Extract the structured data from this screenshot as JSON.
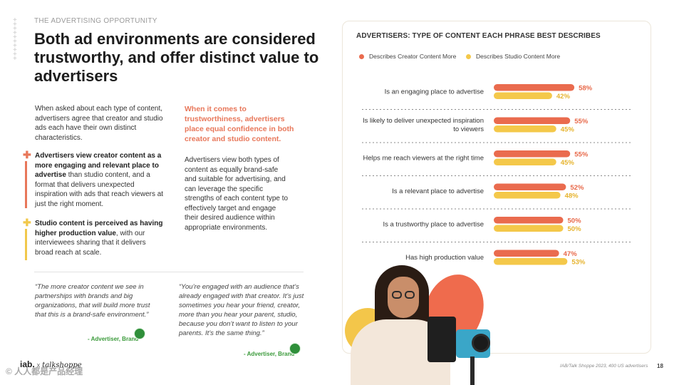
{
  "eyebrow": "THE ADVERTISING OPPORTUNITY",
  "headline": "Both ad environments are considered trustworthy, and offer distinct value to advertisers",
  "intro": "When asked about each type of content, advertisers agree that creator and studio ads each have their own distinct characteristics.",
  "points": [
    {
      "icon": "plus-icon",
      "bold": "Advertisers view creator content as a more engaging and relevant place to advertise",
      "rest": " than studio content, and a format that delivers unexpected inspiration with ads that reach viewers at just the right moment."
    },
    {
      "icon": "plus-icon",
      "bold_a": "Studio content is perceived as having ",
      "bold_b": "higher production value",
      "rest": ", with our interviewees sharing that it delivers broad reach at scale."
    }
  ],
  "callout": "When it comes to trustworthiness, advertisers place equal confidence in both creator and studio content.",
  "col2_text": "Advertisers view both types of content as equally brand-safe and suitable for advertising, and can leverage the specific strengths of each content type to effectively target and engage their desired audience within appropriate environments.",
  "quotes": [
    {
      "text": "“The more creator content we see in partnerships with brands and big organizations, that will build more trust that this is a brand-safe environment.”",
      "attribution": "- Advertiser, Brand"
    },
    {
      "text": "“You’re engaged with an audience that’s already engaged with that creator. It’s just sometimes you hear your friend, creator, more than you hear your parent, studio, because you don’t want to listen to your parents. It’s the same thing.”",
      "attribution": "- Advertiser, Brand"
    }
  ],
  "logo": {
    "left": "iab.",
    "x": "x",
    "right": "talkshoppe"
  },
  "source": "IAB/Talk Shoppe 2023, 400 US advertisers",
  "page_number": "18",
  "watermark": "© 人人都是产品经理",
  "colors": {
    "creator": "#ea6b4e",
    "studio": "#f4c84a",
    "accent": "#e8775a"
  },
  "chart_data": {
    "type": "bar",
    "orientation": "horizontal",
    "title": "ADVERTISERS: TYPE OF CONTENT EACH PHRASE BEST DESCRIBES",
    "legend_position": "top-left",
    "categories": [
      [
        "Is an engaging place to advertise"
      ],
      [
        "Is likely to deliver unexpected inspiration",
        "to viewers"
      ],
      [
        "Helps me reach viewers at the right time"
      ],
      [
        "Is a relevant place to advertise"
      ],
      [
        "Is a trustworthy place to advertise"
      ],
      [
        "Has high production value"
      ]
    ],
    "series": [
      {
        "name": "Describes Creator Content More",
        "values": [
          58,
          55,
          55,
          52,
          50,
          47
        ]
      },
      {
        "name": "Describes Studio Content More",
        "values": [
          42,
          45,
          45,
          48,
          50,
          53
        ]
      }
    ],
    "value_suffix": "%",
    "xlim": [
      0,
      100
    ]
  }
}
